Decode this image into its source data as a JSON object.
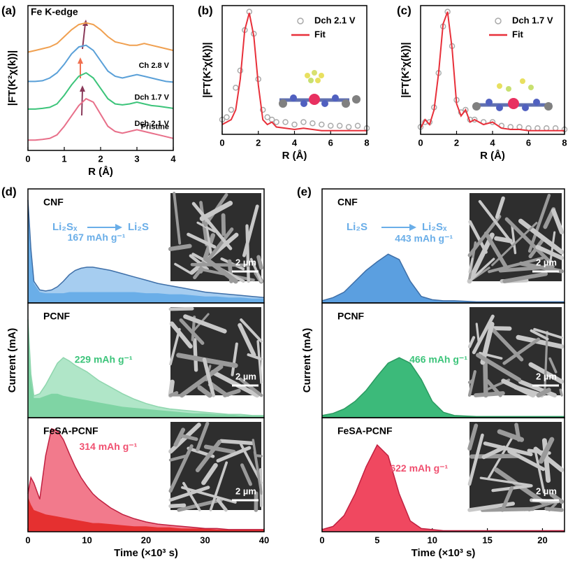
{
  "chart_data": [
    {
      "type": "line",
      "label": "(a)",
      "title": "Fe K-edge",
      "xlabel": "R (Å)",
      "ylabel": "|FT(K²χ(k))|",
      "x": [
        0,
        0.2,
        0.4,
        0.6,
        0.8,
        1,
        1.2,
        1.4,
        1.6,
        1.8,
        2,
        2.2,
        2.4,
        2.6,
        2.8,
        3,
        3.2,
        3.4,
        3.6,
        3.8,
        4
      ],
      "xlim": [
        0,
        4
      ],
      "xticks": [
        0,
        1,
        2,
        3,
        4
      ],
      "ylim": [
        0,
        4.2
      ],
      "series": [
        {
          "name": "Pristine",
          "color": "#e8708a",
          "values": [
            0.3,
            0.3,
            0.32,
            0.35,
            0.45,
            0.7,
            1.0,
            1.3,
            1.5,
            1.4,
            1.05,
            0.7,
            0.55,
            0.5,
            0.55,
            0.6,
            0.55,
            0.5,
            0.45,
            0.4,
            0.35
          ]
        },
        {
          "name": "Dch 2.1 V",
          "color": "#3cc47a",
          "values": [
            1.2,
            1.2,
            1.22,
            1.25,
            1.35,
            1.6,
            1.9,
            2.15,
            2.25,
            2.1,
            1.8,
            1.5,
            1.35,
            1.32,
            1.35,
            1.4,
            1.35,
            1.3,
            1.28,
            1.25,
            1.22
          ]
        },
        {
          "name": "Dch 1.7 V",
          "color": "#5aa0d8",
          "values": [
            2.0,
            2.0,
            2.02,
            2.1,
            2.25,
            2.5,
            2.8,
            3.0,
            3.05,
            2.9,
            2.6,
            2.3,
            2.15,
            2.1,
            2.15,
            2.2,
            2.15,
            2.1,
            2.05,
            2.0,
            1.98
          ]
        },
        {
          "name": "Ch 2.8 V",
          "color": "#f0a050",
          "values": [
            2.85,
            2.9,
            2.95,
            3.0,
            3.1,
            3.3,
            3.5,
            3.65,
            3.7,
            3.65,
            3.5,
            3.3,
            3.15,
            3.1,
            3.05,
            3.05,
            3.1,
            3.05,
            3.0,
            2.95,
            2.9
          ]
        }
      ]
    },
    {
      "type": "line",
      "label": "(b)",
      "xlabel": "R (Å)",
      "ylabel": "|FT(K²χ(k))|",
      "x": [
        0,
        0.25,
        0.5,
        0.75,
        1,
        1.25,
        1.5,
        1.75,
        2,
        2.25,
        2.5,
        2.75,
        3,
        3.5,
        4,
        4.5,
        5,
        5.5,
        6,
        6.5,
        7,
        7.5,
        8
      ],
      "xlim": [
        0,
        8
      ],
      "xticks": [
        0,
        2,
        4,
        6,
        8
      ],
      "ylim": [
        0,
        1.05
      ],
      "series": [
        {
          "name": "Dch 2.1 V",
          "color": "#aaaaaa",
          "mode": "markers",
          "values": [
            0.12,
            0.14,
            0.2,
            0.38,
            0.52,
            0.85,
            1.0,
            0.82,
            0.45,
            0.2,
            0.14,
            0.12,
            0.1,
            0.1,
            0.08,
            0.1,
            0.09,
            0.08,
            0.07,
            0.07,
            0.06,
            0.07,
            0.05
          ]
        },
        {
          "name": "Fit",
          "color": "#e8303a",
          "mode": "line",
          "values": [
            0.08,
            0.1,
            0.12,
            0.2,
            0.45,
            0.85,
            0.99,
            0.8,
            0.4,
            0.12,
            0.08,
            0.1,
            0.06,
            0.05,
            0.04,
            0.05,
            0.04,
            0.03,
            0.03,
            0.03,
            0.03,
            0.03,
            0.03
          ]
        }
      ]
    },
    {
      "type": "line",
      "label": "(c)",
      "xlabel": "R (Å)",
      "ylabel": "|FT(K²χ(k))|",
      "x": [
        0,
        0.25,
        0.5,
        0.75,
        1,
        1.25,
        1.5,
        1.75,
        2,
        2.25,
        2.5,
        2.75,
        3,
        3.5,
        4,
        4.5,
        5,
        5.5,
        6,
        6.5,
        7,
        7.5,
        8
      ],
      "xlim": [
        0,
        8
      ],
      "xticks": [
        0,
        2,
        4,
        6,
        8
      ],
      "ylim": [
        0,
        1.05
      ],
      "series": [
        {
          "name": "Dch 1.7 V",
          "color": "#aaaaaa",
          "mode": "markers",
          "values": [
            0.06,
            0.1,
            0.1,
            0.22,
            0.5,
            0.88,
            1.0,
            0.72,
            0.28,
            0.18,
            0.2,
            0.12,
            0.12,
            0.1,
            0.1,
            0.07,
            0.06,
            0.06,
            0.05,
            0.05,
            0.05,
            0.05,
            0.04
          ]
        },
        {
          "name": "Fit",
          "color": "#e8303a",
          "mode": "line",
          "values": [
            0.05,
            0.12,
            0.08,
            0.2,
            0.5,
            0.9,
            1.0,
            0.7,
            0.25,
            0.15,
            0.2,
            0.1,
            0.12,
            0.08,
            0.1,
            0.05,
            0.04,
            0.04,
            0.03,
            0.03,
            0.03,
            0.03,
            0.03
          ]
        }
      ]
    },
    {
      "type": "area",
      "label": "(d)",
      "xlabel": "Time (×10³ s)",
      "ylabel": "Current (mA)",
      "x": [
        0,
        0.5,
        1,
        2,
        3,
        4,
        5,
        6,
        7,
        8,
        9,
        10,
        11,
        12,
        14,
        16,
        18,
        20,
        22,
        24,
        26,
        28,
        30,
        32,
        34,
        36,
        38,
        40
      ],
      "xlim": [
        0,
        40
      ],
      "xticks": [
        0,
        10,
        20,
        30,
        40
      ],
      "ylim": [
        0,
        1
      ],
      "conversion": {
        "from": "Li₂Sₓ",
        "to": "Li₂S"
      },
      "panels": [
        {
          "name": "CNF",
          "annotation": "167 mAh g⁻¹",
          "color": "#6aaee8",
          "scale_bar": "2 µm",
          "series": [
            {
              "color": "#a6cdf0",
              "line": "#3e6fa8",
              "values": [
                0.95,
                0.5,
                0.2,
                0.12,
                0.11,
                0.12,
                0.15,
                0.2,
                0.26,
                0.3,
                0.32,
                0.33,
                0.33,
                0.32,
                0.3,
                0.27,
                0.24,
                0.21,
                0.18,
                0.16,
                0.14,
                0.12,
                0.1,
                0.09,
                0.08,
                0.07,
                0.06,
                0.05
              ]
            },
            {
              "color": "#6aaee8",
              "values": [
                0.95,
                0.45,
                0.18,
                0.1,
                0.09,
                0.09,
                0.09,
                0.09,
                0.1,
                0.1,
                0.1,
                0.1,
                0.1,
                0.1,
                0.1,
                0.1,
                0.1,
                0.09,
                0.09,
                0.08,
                0.08,
                0.07,
                0.06,
                0.06,
                0.05,
                0.05,
                0.04,
                0.04
              ]
            }
          ]
        },
        {
          "name": "PCNF",
          "annotation": "229 mAh g⁻¹",
          "color": "#3cc47a",
          "scale_bar": "2 µm",
          "series": [
            {
              "color": "#b0e6c8",
              "line": "#8fd6ae",
              "values": [
                0.9,
                0.4,
                0.2,
                0.22,
                0.3,
                0.4,
                0.5,
                0.55,
                0.52,
                0.48,
                0.45,
                0.42,
                0.38,
                0.34,
                0.28,
                0.22,
                0.17,
                0.13,
                0.1,
                0.08,
                0.07,
                0.06,
                0.05,
                0.04,
                0.03,
                0.03,
                0.02,
                0.02
              ]
            },
            {
              "color": "#7fd4a4",
              "values": [
                0.85,
                0.35,
                0.18,
                0.18,
                0.2,
                0.22,
                0.22,
                0.2,
                0.19,
                0.18,
                0.17,
                0.16,
                0.15,
                0.14,
                0.12,
                0.1,
                0.09,
                0.08,
                0.07,
                0.06,
                0.05,
                0.04,
                0.04,
                0.03,
                0.03,
                0.02,
                0.02,
                0.02
              ]
            }
          ]
        },
        {
          "name": "FeSA-PCNF",
          "annotation": "314 mAh g⁻¹",
          "color": "#f05070",
          "scale_bar": "2 µm",
          "series": [
            {
              "color": "#f27a8c",
              "line": "#c02040",
              "values": [
                0.35,
                0.5,
                0.45,
                0.3,
                0.7,
                0.95,
                0.93,
                0.85,
                0.72,
                0.6,
                0.5,
                0.42,
                0.35,
                0.3,
                0.22,
                0.16,
                0.12,
                0.09,
                0.07,
                0.06,
                0.05,
                0.04,
                0.03,
                0.03,
                0.02,
                0.02,
                0.02,
                0.02
              ]
            },
            {
              "color": "#e53030",
              "values": [
                0.32,
                0.25,
                0.2,
                0.18,
                0.16,
                0.15,
                0.14,
                0.13,
                0.12,
                0.11,
                0.1,
                0.09,
                0.08,
                0.08,
                0.07,
                0.06,
                0.05,
                0.05,
                0.04,
                0.04,
                0.03,
                0.03,
                0.03,
                0.02,
                0.02,
                0.02,
                0.02,
                0.02
              ]
            }
          ]
        }
      ]
    },
    {
      "type": "area",
      "label": "(e)",
      "xlabel": "Time (×10³ s)",
      "ylabel": "Current (mA)",
      "x": [
        0,
        1,
        2,
        3,
        4,
        5,
        6,
        7,
        8,
        9,
        10,
        11,
        12,
        14,
        16,
        18,
        20,
        22
      ],
      "xlim": [
        0,
        22
      ],
      "xticks": [
        0,
        5,
        10,
        15,
        20
      ],
      "ylim": [
        0,
        1
      ],
      "conversion": {
        "from": "Li₂S",
        "to": "Li₂Sₓ"
      },
      "panels": [
        {
          "name": "CNF",
          "annotation": "443 mAh g⁻¹",
          "color": "#6aaee8",
          "scale_bar": "2 µm",
          "series": [
            {
              "color": "#5b9fe0",
              "line": "#3e6fa8",
              "values": [
                0.02,
                0.05,
                0.1,
                0.2,
                0.3,
                0.38,
                0.45,
                0.4,
                0.2,
                0.06,
                0.03,
                0.02,
                0.02,
                0.01,
                0.01,
                0.01,
                0.01,
                0.01
              ]
            }
          ]
        },
        {
          "name": "PCNF",
          "annotation": "466 mAh g⁻¹",
          "color": "#3cc47a",
          "scale_bar": "2 µm",
          "series": [
            {
              "color": "#3cba7a",
              "line": "#2a9a60",
              "values": [
                0.02,
                0.04,
                0.08,
                0.15,
                0.25,
                0.38,
                0.5,
                0.55,
                0.5,
                0.35,
                0.15,
                0.05,
                0.02,
                0.01,
                0.01,
                0.01,
                0.01,
                0.01
              ]
            }
          ]
        },
        {
          "name": "FeSA-PCNF",
          "annotation": "622 mAh g⁻¹",
          "color": "#f05070",
          "scale_bar": "2 µm",
          "series": [
            {
              "color": "#f04860",
              "line": "#c02040",
              "values": [
                0.02,
                0.05,
                0.15,
                0.35,
                0.6,
                0.8,
                0.7,
                0.35,
                0.1,
                0.03,
                0.02,
                0.01,
                0.01,
                0.01,
                0.01,
                0.01,
                0.01,
                0.01
              ]
            }
          ]
        }
      ]
    }
  ]
}
